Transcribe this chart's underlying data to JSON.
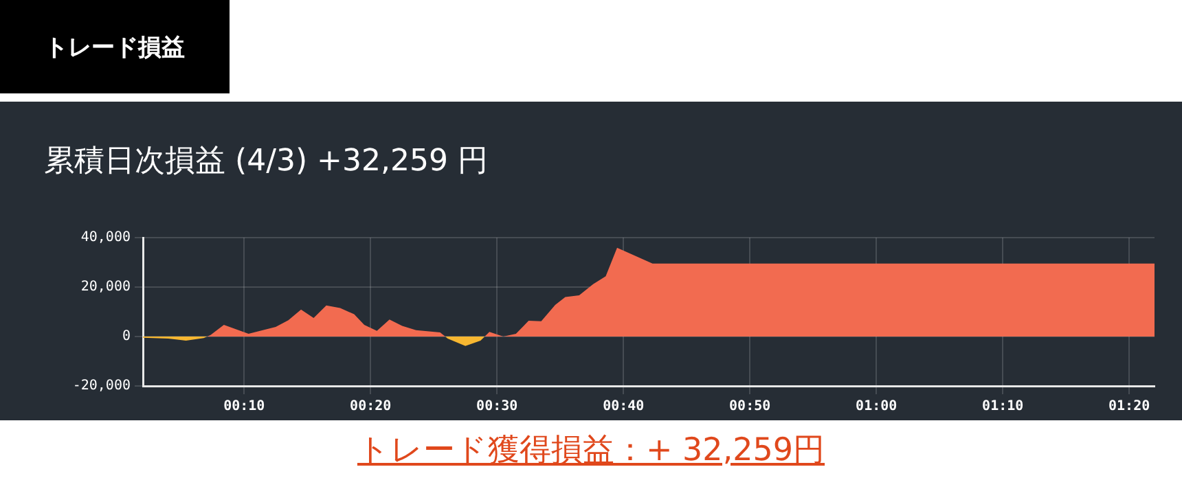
{
  "chart_data": {
    "type": "area",
    "title": "トレード損益",
    "subtitle": "累積日次損益 (4/3) +32,259 円",
    "annotations": [
      "トレード獲得損益：+ 32,259円"
    ],
    "series": [
      {
        "color": "#f26b50",
        "x": [
          0.1179,
          0.1225,
          0.14,
          0.1725,
          0.2083,
          0.225,
          0.2417,
          0.2583,
          0.275,
          0.2933,
          0.3117,
          0.325,
          0.3417,
          0.3583,
          0.375,
          0.3933,
          0.425,
          0.4318,
          0.45,
          0.4838,
          0.49,
          0.5083,
          0.525,
          0.5417,
          0.5583,
          0.5767,
          0.59,
          0.6083,
          0.6267,
          0.6433,
          0.6583,
          0.705,
          1.3667
        ],
        "values": [
          0,
          600,
          4700,
          1100,
          3900,
          6600,
          10900,
          7500,
          12600,
          11500,
          9000,
          4700,
          2300,
          6900,
          4300,
          2600,
          1700,
          0,
          null,
          0,
          1900,
          0,
          1100,
          6400,
          6200,
          12800,
          16000,
          16700,
          21200,
          24400,
          35900,
          29500,
          29500
        ]
      },
      {
        "color": "#f7b731",
        "x": [
          0.0333,
          0.0667,
          0.09,
          0.1133,
          0.1179,
          0.2,
          0.4318,
          0.435,
          0.4583,
          0.4783,
          0.4838
        ],
        "values": [
          -500,
          -800,
          -1700,
          -600,
          0,
          null,
          0,
          -800,
          -3800,
          -1700,
          0
        ]
      }
    ],
    "xlim": [
      0.0333,
      1.3667
    ],
    "xticks": [
      {
        "value": 0.1667,
        "label": "00:10"
      },
      {
        "value": 0.3333,
        "label": "00:20"
      },
      {
        "value": 0.5,
        "label": "00:30"
      },
      {
        "value": 0.6667,
        "label": "00:40"
      },
      {
        "value": 0.8333,
        "label": "00:50"
      },
      {
        "value": 1,
        "label": "01:00"
      },
      {
        "value": 1.1667,
        "label": "01:10"
      },
      {
        "value": 1.3333,
        "label": "01:20"
      }
    ],
    "ylim": [
      -20000,
      40000
    ],
    "yticks": [
      {
        "value": -20000,
        "label": "-20,000"
      },
      {
        "value": 0,
        "label": "0"
      },
      {
        "value": 20000,
        "label": "20,000"
      },
      {
        "value": 40000,
        "label": "40,000"
      }
    ],
    "grid": true
  }
}
